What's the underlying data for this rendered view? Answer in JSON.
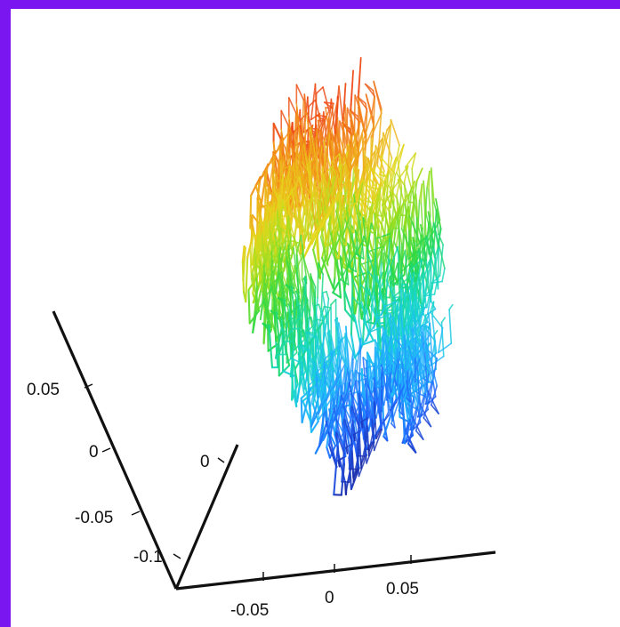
{
  "chart_data": {
    "type": "line",
    "title": "",
    "xlabel": "",
    "ylabel": "",
    "zlabel": "",
    "x_axis": {
      "range": [
        -0.1,
        0.1
      ],
      "ticks": [
        -0.05,
        0,
        0.05
      ],
      "tick_labels": [
        "-0.05",
        "0",
        "0.05"
      ]
    },
    "y_axis": {
      "range": [
        -0.1,
        0.1
      ],
      "ticks": [
        0,
        -0.1
      ],
      "tick_labels": [
        "0",
        "-0.1"
      ]
    },
    "z_axis": {
      "range": [
        -0.1,
        0.1
      ],
      "ticks": [
        0.05,
        0,
        -0.05
      ],
      "tick_labels": [
        "0.05",
        "0",
        "-0.05"
      ]
    },
    "grid": false,
    "colormap": [
      "#1b1b8f",
      "#1f63ff",
      "#20b7ff",
      "#17d9c7",
      "#21d84f",
      "#8de021",
      "#e5d81d",
      "#f39c18",
      "#ef4b18"
    ],
    "series": [
      {
        "x": [
          -0.08,
          -0.06,
          -0.04,
          -0.02,
          0.0,
          0.02,
          0.04,
          0.06,
          0.07,
          0.05,
          0.03,
          0.01,
          -0.01,
          -0.03,
          -0.05,
          -0.07,
          -0.06,
          -0.04,
          -0.02,
          0.0,
          0.02,
          0.04,
          0.06,
          0.05,
          0.03,
          0.01,
          -0.01,
          -0.03,
          -0.05,
          -0.06,
          -0.04,
          -0.02,
          0.0,
          0.02,
          0.04,
          0.06
        ],
        "y": [
          0.06,
          0.07,
          0.05,
          0.03,
          0.01,
          -0.01,
          -0.03,
          -0.05,
          -0.07,
          -0.06,
          -0.04,
          -0.02,
          0.0,
          0.02,
          0.04,
          0.06,
          0.03,
          0.01,
          -0.01,
          -0.03,
          -0.05,
          -0.07,
          -0.05,
          -0.03,
          -0.01,
          0.01,
          0.03,
          0.05,
          0.04,
          0.02,
          0.0,
          -0.02,
          -0.04,
          -0.06,
          -0.04,
          -0.02
        ],
        "z": [
          0.04,
          0.08,
          0.1,
          0.07,
          0.09,
          0.05,
          0.03,
          0.01,
          -0.02,
          -0.04,
          -0.06,
          -0.08,
          -0.05,
          -0.02,
          0.01,
          0.04,
          0.06,
          0.08,
          0.05,
          0.03,
          0.0,
          -0.03,
          -0.07,
          -0.05,
          -0.01,
          0.02,
          0.05,
          0.07,
          0.06,
          0.03,
          0.0,
          -0.02,
          -0.05,
          -0.08,
          -0.06,
          -0.03
        ]
      }
    ]
  }
}
